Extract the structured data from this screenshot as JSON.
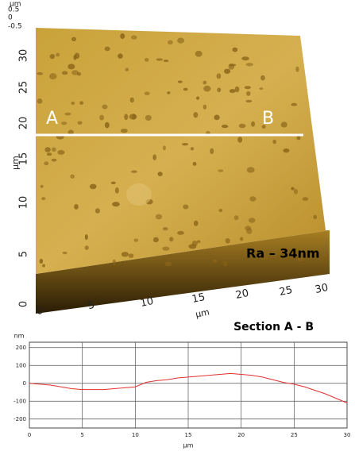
{
  "afm_image": {
    "z_unit": "µm",
    "z_ticks": [
      0.5,
      0,
      -0.5
    ],
    "y_unit": "µm",
    "y_ticks": [
      0,
      5,
      10,
      15,
      20,
      25,
      30
    ],
    "x_unit": "µm",
    "x_ticks": [
      0,
      5,
      10,
      15,
      20,
      25,
      30
    ],
    "label_a": "A",
    "label_b": "B",
    "roughness": "Ra – 34nm"
  },
  "chart_data": {
    "type": "line",
    "title": "Section A - B",
    "x_label": "µm",
    "y_label": "nm",
    "x": [
      0,
      1,
      2,
      3,
      4,
      5,
      6,
      7,
      8,
      9,
      10,
      11,
      12,
      13,
      14,
      15,
      16,
      17,
      18,
      19,
      20,
      21,
      22,
      23,
      24,
      25,
      26,
      27,
      28,
      29,
      30
    ],
    "series": [
      {
        "color": "#e03030",
        "values": [
          0,
          -5,
          -10,
          -20,
          -30,
          -35,
          -35,
          -35,
          -30,
          -25,
          -20,
          5,
          15,
          20,
          30,
          35,
          40,
          45,
          50,
          55,
          50,
          45,
          35,
          20,
          5,
          -5,
          -20,
          -40,
          -60,
          -85,
          -110
        ]
      }
    ],
    "xlim": [
      0,
      30
    ],
    "ylim": [
      -250,
      230
    ],
    "xticks": [
      0,
      5,
      10,
      15,
      20,
      25,
      30
    ],
    "yticks": [
      -200,
      -100,
      0,
      100,
      200
    ],
    "grid": true
  }
}
